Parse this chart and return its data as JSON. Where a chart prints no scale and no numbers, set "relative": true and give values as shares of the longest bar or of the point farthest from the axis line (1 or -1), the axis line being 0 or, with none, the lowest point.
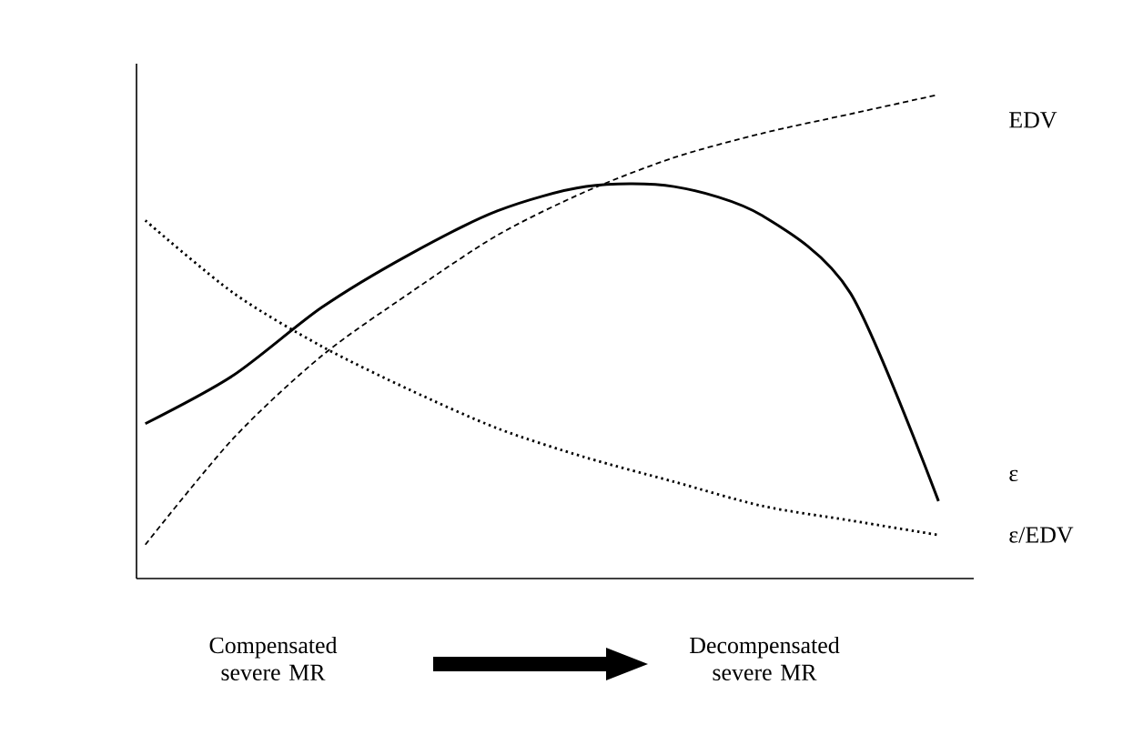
{
  "chart_data": {
    "type": "line",
    "relative": true,
    "categories": [
      null,
      null,
      null,
      null,
      null,
      null,
      null,
      null,
      null,
      null
    ],
    "series": [
      {
        "name": "EDV",
        "color": "#000000",
        "line_style": "dashed",
        "values": [
          0.07,
          0.29,
          0.46,
          0.59,
          0.71,
          0.8,
          0.87,
          0.92,
          0.96,
          1
        ]
      },
      {
        "name": "ε",
        "color": "#000000",
        "line_style": "solid",
        "values": [
          0.32,
          0.42,
          0.56,
          0.67,
          0.76,
          0.81,
          0.81,
          0.75,
          0.59,
          0.16
        ]
      },
      {
        "name": "ε/EDV",
        "color": "#000000",
        "line_style": "dotted",
        "values": [
          0.74,
          0.59,
          0.48,
          0.39,
          0.31,
          0.25,
          0.2,
          0.15,
          0.12,
          0.09
        ]
      }
    ],
    "annotations": [
      "Compensated severe MR",
      "Decompensated severe MR"
    ]
  }
}
